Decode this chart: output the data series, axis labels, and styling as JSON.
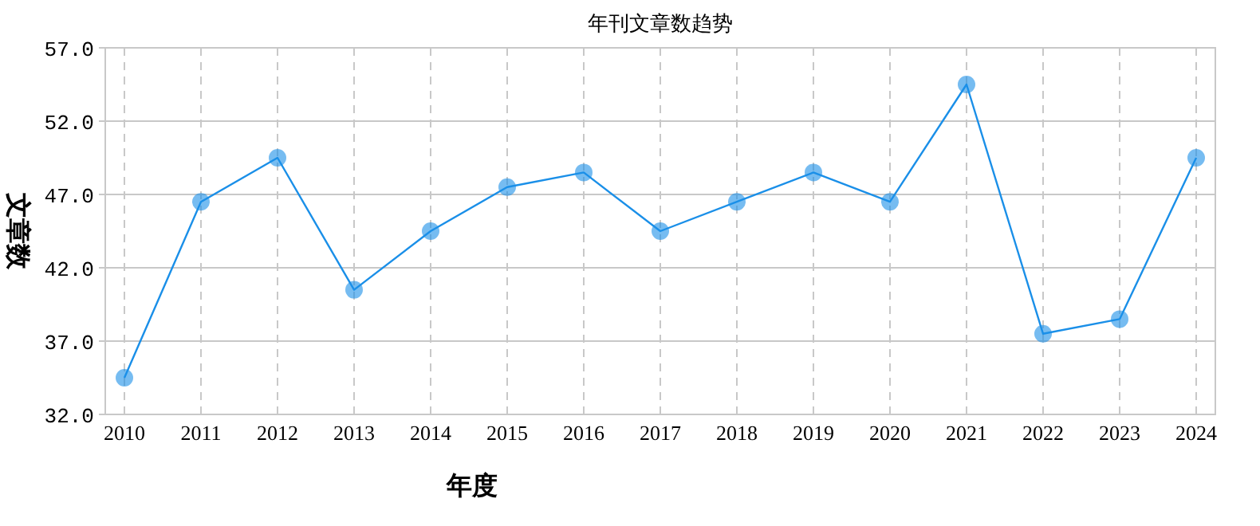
{
  "chart_data": {
    "type": "line",
    "title": "年刊文章数趋势",
    "xlabel": "年度",
    "ylabel": "文章数",
    "categories": [
      "2010",
      "2011",
      "2012",
      "2013",
      "2014",
      "2015",
      "2016",
      "2017",
      "2018",
      "2019",
      "2020",
      "2021",
      "2022",
      "2023",
      "2024"
    ],
    "series": [
      {
        "color": "#1a8fe8",
        "values": [
          34.5,
          46.5,
          49.5,
          40.5,
          44.5,
          47.5,
          48.5,
          44.5,
          46.5,
          48.5,
          46.5,
          54.5,
          37.5,
          38.5,
          49.5
        ]
      }
    ],
    "ylim": [
      32,
      57
    ],
    "yticks": [
      {
        "value": 32,
        "label": "32.0"
      },
      {
        "value": 37,
        "label": "37.0"
      },
      {
        "value": 42,
        "label": "42.0"
      },
      {
        "value": 47,
        "label": "47.0"
      },
      {
        "value": 52,
        "label": "52.0"
      },
      {
        "value": 57,
        "label": "57.0"
      }
    ],
    "grid": true,
    "marker": "circle",
    "line_style": "solid"
  }
}
